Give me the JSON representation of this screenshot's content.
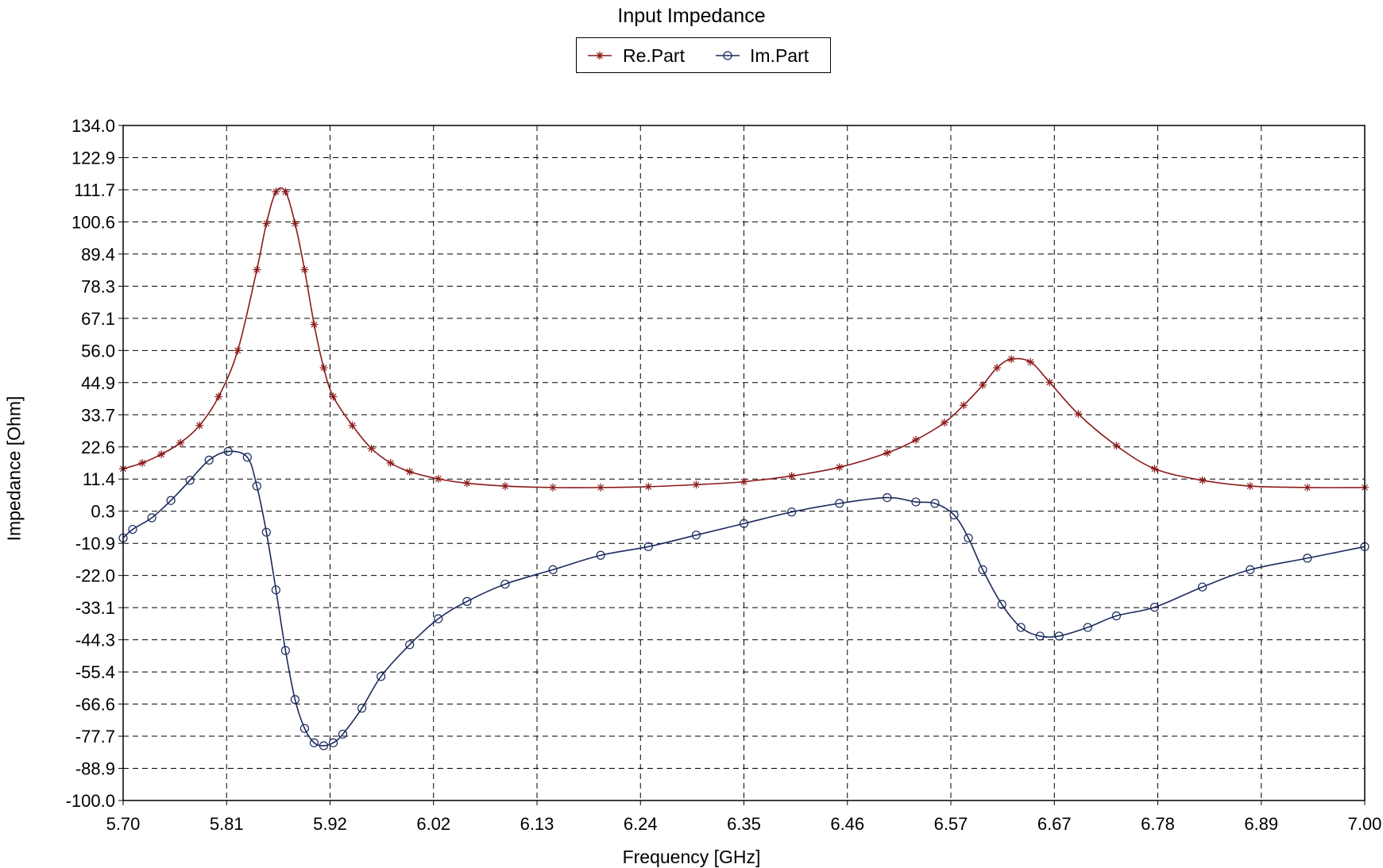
{
  "chart_data": {
    "type": "line",
    "title": "Input Impedance",
    "xlabel": "Frequency [GHz]",
    "ylabel": "Impedance [Ohm]",
    "xlim": [
      5.7,
      7.0
    ],
    "ylim": [
      -100.0,
      134.0
    ],
    "x_ticks": [
      "5.70",
      "5.81",
      "5.92",
      "6.02",
      "6.13",
      "6.24",
      "6.35",
      "6.46",
      "6.57",
      "6.67",
      "6.78",
      "6.89",
      "7.00"
    ],
    "y_ticks": [
      "134.0",
      "122.9",
      "111.7",
      "100.6",
      "89.4",
      "78.3",
      "67.1",
      "56.0",
      "44.9",
      "33.7",
      "22.6",
      "11.4",
      "0.3",
      "-10.9",
      "-22.0",
      "-33.1",
      "-44.3",
      "-55.4",
      "-66.6",
      "-77.7",
      "-88.9",
      "-100.0"
    ],
    "grid": true,
    "legend_position": "top-center",
    "series": [
      {
        "name": "Re.Part",
        "color": "#8b1a1a",
        "marker": "asterisk",
        "x": [
          5.7,
          5.72,
          5.74,
          5.76,
          5.78,
          5.8,
          5.82,
          5.84,
          5.85,
          5.86,
          5.87,
          5.88,
          5.89,
          5.9,
          5.91,
          5.92,
          5.94,
          5.96,
          5.98,
          6.0,
          6.03,
          6.06,
          6.1,
          6.15,
          6.2,
          6.25,
          6.3,
          6.35,
          6.4,
          6.45,
          6.5,
          6.53,
          6.56,
          6.58,
          6.6,
          6.615,
          6.63,
          6.65,
          6.67,
          6.7,
          6.74,
          6.78,
          6.83,
          6.88,
          6.94,
          7.0
        ],
        "y": [
          15,
          17,
          20,
          24,
          30,
          40,
          56,
          84,
          100,
          111,
          111,
          100,
          84,
          65,
          50,
          40,
          30,
          22,
          17,
          14,
          11.5,
          10,
          9,
          8.5,
          8.5,
          8.8,
          9.5,
          10.5,
          12.5,
          15.5,
          20.5,
          25,
          31,
          37,
          44,
          50,
          53,
          52,
          45,
          34,
          23,
          15,
          11,
          9,
          8.5,
          8.5
        ]
      },
      {
        "name": "Im.Part",
        "color": "#1a2a5e",
        "marker": "circle",
        "x": [
          5.7,
          5.71,
          5.73,
          5.75,
          5.77,
          5.79,
          5.81,
          5.83,
          5.84,
          5.85,
          5.86,
          5.87,
          5.88,
          5.89,
          5.9,
          5.91,
          5.92,
          5.93,
          5.95,
          5.97,
          6.0,
          6.03,
          6.06,
          6.1,
          6.15,
          6.2,
          6.25,
          6.3,
          6.35,
          6.4,
          6.45,
          6.5,
          6.53,
          6.55,
          6.57,
          6.585,
          6.6,
          6.62,
          6.64,
          6.66,
          6.68,
          6.71,
          6.74,
          6.78,
          6.83,
          6.88,
          6.94,
          7.0
        ],
        "y": [
          -9,
          -6,
          -2,
          4,
          11,
          18,
          21,
          19,
          9,
          -7,
          -27,
          -48,
          -65,
          -75,
          -80,
          -81,
          -80,
          -77,
          -68,
          -57,
          -46,
          -37,
          -31,
          -25,
          -20,
          -15,
          -12,
          -8,
          -4,
          0,
          3,
          5,
          3.5,
          3,
          -1,
          -9,
          -20,
          -32,
          -40,
          -43,
          -43,
          -40,
          -36,
          -33,
          -26,
          -20,
          -16,
          -12
        ]
      }
    ]
  },
  "legend": {
    "re_label": "Re.Part",
    "im_label": "Im.Part"
  }
}
